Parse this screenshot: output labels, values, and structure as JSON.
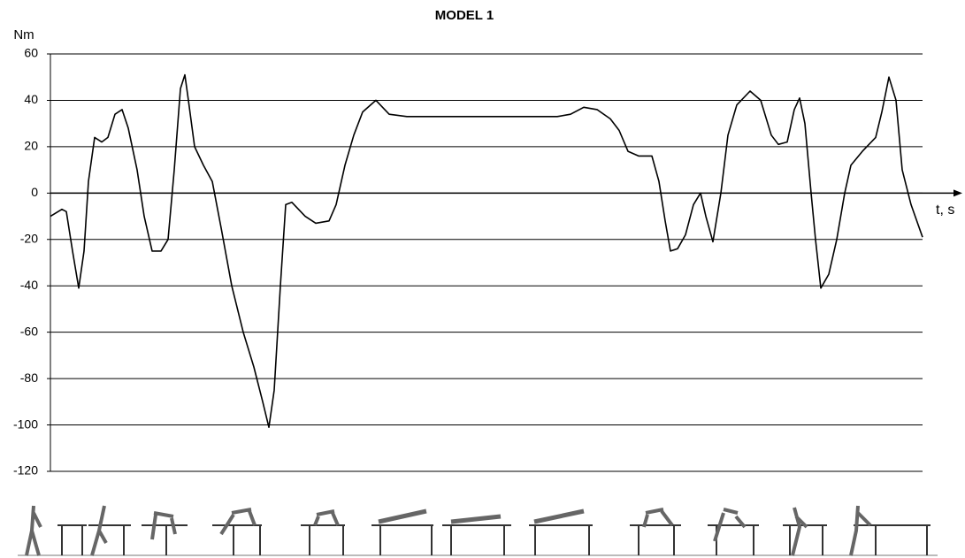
{
  "chart_data": {
    "type": "line",
    "title": "MODEL 1",
    "y_label": "Nm",
    "x_label": "t, s",
    "x": [
      0,
      13,
      18,
      25,
      32,
      38,
      43,
      50,
      58,
      65,
      73,
      81,
      88,
      98,
      106,
      115,
      125,
      133,
      140,
      147,
      152,
      156,
      163,
      173,
      183,
      193,
      205,
      218,
      230,
      240,
      247,
      253,
      260,
      266,
      273,
      288,
      300,
      315,
      323,
      333,
      343,
      353,
      368,
      383,
      403,
      443,
      493,
      543,
      573,
      588,
      603,
      618,
      633,
      643,
      653,
      665,
      680,
      688,
      695,
      701,
      709,
      718,
      727,
      735,
      741,
      749,
      758,
      766,
      776,
      791,
      803,
      815,
      823,
      833,
      841,
      847,
      853,
      860,
      865,
      871,
      880,
      889,
      898,
      905,
      918,
      933,
      940,
      948,
      956,
      963,
      973,
      986
    ],
    "values": [
      -10,
      -7,
      -8,
      -25,
      -41,
      -25,
      5,
      24,
      22,
      24,
      34,
      36,
      28,
      10,
      -10,
      -25,
      -25,
      -20,
      10,
      45,
      51,
      40,
      20,
      12,
      5,
      -15,
      -40,
      -60,
      -75,
      -90,
      -101,
      -85,
      -40,
      -5,
      -4,
      -10,
      -13,
      -12,
      -5,
      12,
      25,
      35,
      40,
      34,
      33,
      33,
      33,
      33,
      33,
      34,
      37,
      36,
      32,
      27,
      18,
      16,
      16,
      5,
      -12,
      -25,
      -24,
      -18,
      -5,
      0,
      -10,
      -21,
      0,
      25,
      38,
      44,
      40,
      25,
      21,
      22,
      36,
      41,
      30,
      0,
      -20,
      -41,
      -35,
      -20,
      0,
      12,
      18,
      24,
      35,
      50,
      40,
      10,
      -5,
      -19
    ],
    "color": "#000000",
    "xlim": [
      0,
      986
    ],
    "ylim": [
      -120,
      60
    ],
    "yticks": [
      -120,
      -100,
      -80,
      -60,
      -40,
      -20,
      0,
      20,
      40,
      60
    ],
    "grid": true
  }
}
